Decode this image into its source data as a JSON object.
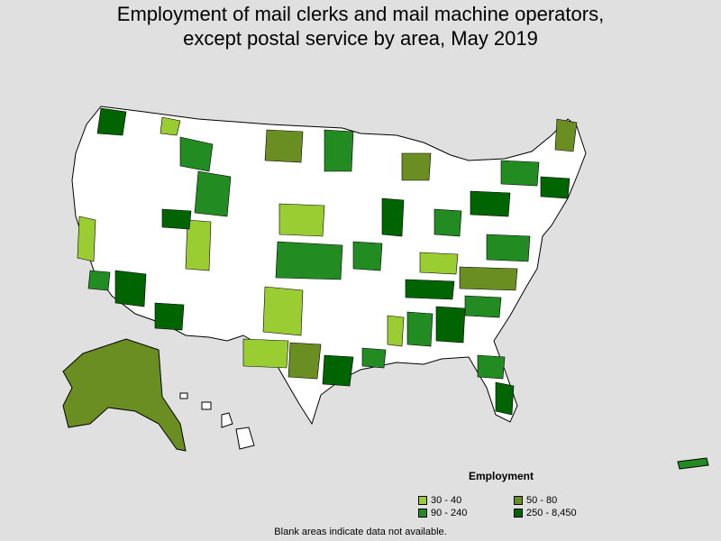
{
  "title_line1": "Employment of mail clerks and mail machine operators,",
  "title_line2": "except postal service by area, May 2019",
  "legend": {
    "title": "Employment",
    "items": [
      {
        "label": "30 - 40",
        "color": "#9acd32"
      },
      {
        "label": "50 - 80",
        "color": "#6b8e23"
      },
      {
        "label": "90 - 240",
        "color": "#228b22"
      },
      {
        "label": "250 - 8,450",
        "color": "#006400"
      }
    ]
  },
  "footnote": "Blank areas indicate data not available.",
  "colors": {
    "background": "#e0e0e0",
    "no_data": "#ffffff",
    "border": "#000000"
  }
}
